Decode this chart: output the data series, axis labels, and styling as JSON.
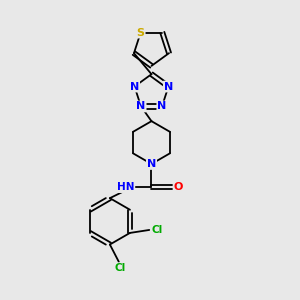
{
  "bg_color": "#e8e8e8",
  "atom_colors": {
    "N": "#0000ff",
    "O": "#ff0000",
    "S": "#ccaa00",
    "Cl": "#00aa00",
    "C": "#000000",
    "H": "#888888"
  },
  "bond_color": "#000000",
  "bond_lw": 1.3,
  "figsize": [
    3.0,
    3.0
  ],
  "dpi": 100
}
